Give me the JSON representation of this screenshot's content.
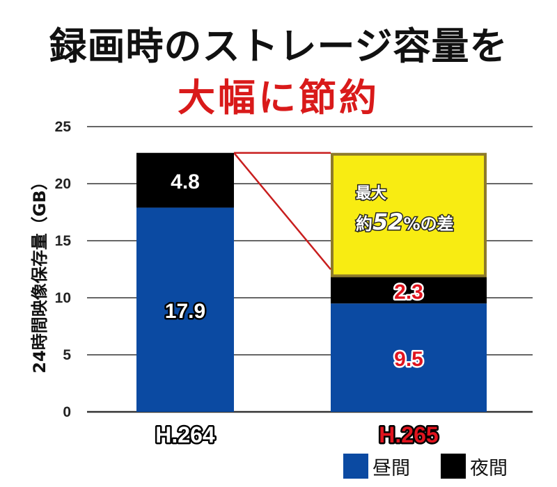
{
  "title": {
    "line1": "録画時のストレージ容量を",
    "line2": "大幅に節約"
  },
  "colors": {
    "day": "#0b4aa2",
    "night": "#000000",
    "gap": "#f8ec12",
    "gap_border": "#8d7a2b",
    "title_red": "#d91a1a",
    "label_red": "#e0141e",
    "connector": "#c81e1e",
    "grid": "#333333"
  },
  "chart_data": {
    "type": "bar",
    "stacked": true,
    "categories": [
      "H.264",
      "H.265"
    ],
    "series": [
      {
        "name": "昼間",
        "values": [
          17.9,
          9.5
        ]
      },
      {
        "name": "夜間",
        "values": [
          4.8,
          2.3
        ]
      }
    ],
    "data_labels": [
      [
        "17.9",
        "9.5"
      ],
      [
        "4.8",
        "2.3"
      ]
    ],
    "ylabel": "24時間映像保存量（GB）",
    "xlabel": "",
    "ylim": [
      0,
      25
    ],
    "yticks": [
      0,
      5,
      10,
      15,
      20,
      25
    ],
    "grid": true,
    "legend": "bottom-right",
    "annotation": {
      "line1": "最大",
      "prefix": "約",
      "value": "52",
      "suffix": "%の差"
    }
  }
}
